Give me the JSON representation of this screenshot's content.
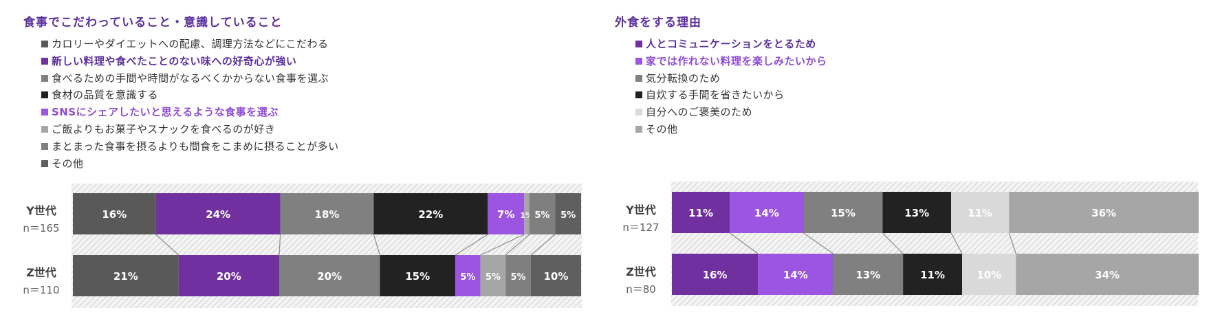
{
  "chart_data": [
    {
      "type": "stacked-bar-100",
      "title": "食事でこだわっていること・意識していること",
      "colors": {
        "title": "#5B2F9E",
        "highlight": "#8E4BD6"
      },
      "legend": [
        {
          "label": "カロリーやダイエットへの配慮、調理方法などにこだわる",
          "color": "#595959",
          "emphasis": "none"
        },
        {
          "label": "新しい料理や食べたことのない味への好奇心が強い",
          "color": "#7030A0",
          "emphasis": "title"
        },
        {
          "label": "食べるための手間や時間がなるべくかからない食事を選ぶ",
          "color": "#808080",
          "emphasis": "none"
        },
        {
          "label": "食材の品質を意識する",
          "color": "#222222",
          "emphasis": "none"
        },
        {
          "label": "SNSにシェアしたいと思えるような食事を選ぶ",
          "color": "#9B55E0",
          "emphasis": "highlight"
        },
        {
          "label": "ご飯よりもお菓子やスナックを食べるのが好き",
          "color": "#A6A6A6",
          "emphasis": "none"
        },
        {
          "label": "まとまった食事を摂るよりも間食をこまめに摂ることが多い",
          "color": "#7F7F7F",
          "emphasis": "none"
        },
        {
          "label": "その他",
          "color": "#5F5F5F",
          "emphasis": "none"
        }
      ],
      "rows": [
        {
          "name": "Y世代",
          "n": "n＝165",
          "values": [
            16,
            24,
            18,
            22,
            7,
            1,
            5,
            5
          ],
          "labels": [
            "16%",
            "24%",
            "18%",
            "22%",
            "7%",
            "1%",
            "5%",
            "5%"
          ]
        },
        {
          "name": "Z世代",
          "n": "n＝110",
          "values": [
            21,
            20,
            20,
            15,
            5,
            5,
            5,
            10
          ],
          "labels": [
            "21%",
            "20%",
            "20%",
            "15%",
            "5%",
            "5%",
            "5%",
            "10%"
          ]
        }
      ]
    },
    {
      "type": "stacked-bar-100",
      "title": "外食をする理由",
      "colors": {
        "title": "#5B2F9E",
        "highlight": "#8E4BD6"
      },
      "legend": [
        {
          "label": "人とコミュニケーションをとるため",
          "color": "#7030A0",
          "emphasis": "title"
        },
        {
          "label": "家では作れない料理を楽しみたいから",
          "color": "#9B55E0",
          "emphasis": "highlight"
        },
        {
          "label": "気分転換のため",
          "color": "#808080",
          "emphasis": "none"
        },
        {
          "label": "自炊する手間を省きたいから",
          "color": "#222222",
          "emphasis": "none"
        },
        {
          "label": "自分へのご褒美のため",
          "color": "#D9D9D9",
          "emphasis": "none"
        },
        {
          "label": "その他",
          "color": "#A6A6A6",
          "emphasis": "none"
        }
      ],
      "rows": [
        {
          "name": "Y世代",
          "n": "n＝127",
          "values": [
            11,
            14,
            15,
            13,
            11,
            36
          ],
          "labels": [
            "11%",
            "14%",
            "15%",
            "13%",
            "11%",
            "36%"
          ]
        },
        {
          "name": "Z世代",
          "n": "n＝80",
          "values": [
            16,
            14,
            13,
            11,
            10,
            34
          ],
          "labels": [
            "16%",
            "14%",
            "13%",
            "11%",
            "10%",
            "34%"
          ]
        }
      ]
    }
  ]
}
